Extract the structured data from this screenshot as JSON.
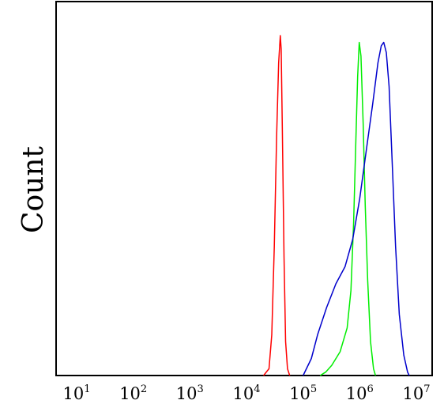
{
  "chart_data": {
    "type": "line",
    "title": "",
    "xlabel": "",
    "ylabel": "Count",
    "x_scale": "log",
    "xlim": [
      10,
      10000000
    ],
    "ylim": [
      0,
      1
    ],
    "grid": false,
    "legend": "none",
    "x_ticks": [
      {
        "base": "10",
        "exp": "1",
        "value": 10
      },
      {
        "base": "10",
        "exp": "2",
        "value": 100
      },
      {
        "base": "10",
        "exp": "3",
        "value": 1000
      },
      {
        "base": "10",
        "exp": "4",
        "value": 10000
      },
      {
        "base": "10",
        "exp": "5",
        "value": 100000
      },
      {
        "base": "10",
        "exp": "6",
        "value": 1000000
      },
      {
        "base": "10",
        "exp": "7",
        "value": 10000000
      }
    ],
    "series": [
      {
        "color": "#ff0000",
        "points": [
          [
            20000,
            0
          ],
          [
            25000,
            0.02
          ],
          [
            28000,
            0.12
          ],
          [
            31000,
            0.38
          ],
          [
            34000,
            0.7
          ],
          [
            37000,
            0.92
          ],
          [
            39500,
            1.0
          ],
          [
            41000,
            0.96
          ],
          [
            43000,
            0.72
          ],
          [
            46000,
            0.35
          ],
          [
            49000,
            0.1
          ],
          [
            53000,
            0.02
          ],
          [
            58000,
            0
          ]
        ]
      },
      {
        "color": "#00ee00",
        "points": [
          [
            200000,
            0
          ],
          [
            250000,
            0.01
          ],
          [
            320000,
            0.03
          ],
          [
            450000,
            0.07
          ],
          [
            600000,
            0.14
          ],
          [
            700000,
            0.25
          ],
          [
            780000,
            0.45
          ],
          [
            850000,
            0.68
          ],
          [
            920000,
            0.88
          ],
          [
            980000,
            0.98
          ],
          [
            1050000,
            0.94
          ],
          [
            1150000,
            0.74
          ],
          [
            1250000,
            0.5
          ],
          [
            1380000,
            0.28
          ],
          [
            1550000,
            0.1
          ],
          [
            1750000,
            0.02
          ],
          [
            1900000,
            0
          ]
        ]
      },
      {
        "color": "#0000cc",
        "points": [
          [
            100000,
            0
          ],
          [
            140000,
            0.05
          ],
          [
            180000,
            0.12
          ],
          [
            260000,
            0.2
          ],
          [
            380000,
            0.27
          ],
          [
            550000,
            0.32
          ],
          [
            750000,
            0.4
          ],
          [
            1000000,
            0.52
          ],
          [
            1300000,
            0.66
          ],
          [
            1700000,
            0.8
          ],
          [
            2100000,
            0.92
          ],
          [
            2400000,
            0.97
          ],
          [
            2650000,
            0.98
          ],
          [
            2950000,
            0.95
          ],
          [
            3300000,
            0.85
          ],
          [
            3800000,
            0.6
          ],
          [
            4300000,
            0.38
          ],
          [
            5000000,
            0.18
          ],
          [
            6000000,
            0.06
          ],
          [
            7000000,
            0.01
          ],
          [
            7500000,
            0
          ]
        ]
      }
    ]
  }
}
